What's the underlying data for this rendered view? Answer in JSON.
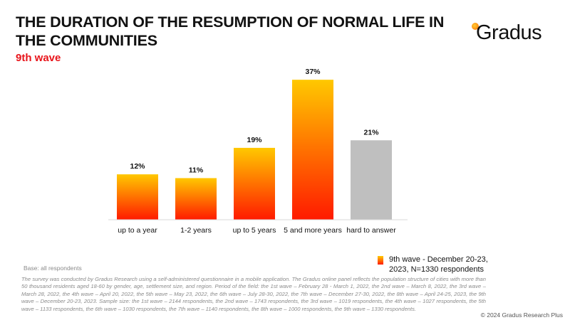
{
  "header": {
    "title": "THE DURATION OF THE RESUMPTION OF NORMAL LIFE IN THE COMMUNITIES",
    "subtitle": "9th wave"
  },
  "brand": {
    "logo_text": "Gradus",
    "accent_color": "#e8151b",
    "logo_dot_colors": [
      "#ffcc33",
      "#ff6a00"
    ]
  },
  "chart_data": {
    "type": "bar",
    "categories": [
      "up to a year",
      "1-2 years",
      "up to 5 years",
      "5 and more years",
      "hard to answer"
    ],
    "values": [
      12,
      11,
      19,
      37,
      21
    ],
    "value_labels": [
      "12%",
      "11%",
      "19%",
      "37%",
      "21%"
    ],
    "unit": "%",
    "ylim": [
      0,
      40
    ],
    "grid": false,
    "legend_position": "bottom-right",
    "bar_colors": {
      "gradient_top": "#ffc800",
      "gradient_bottom": "#ff1a00",
      "hard_to_answer": "#bfbfbf"
    },
    "series": [
      {
        "name": "9th wave - December 20-23, 2023, N=1330 respondents",
        "values": [
          12,
          11,
          19,
          37,
          21
        ]
      }
    ]
  },
  "legend": {
    "label": "9th wave - December 20-23, 2023, N=1330 respondents"
  },
  "footer": {
    "base": "Base: all respondents",
    "methodology": "The survey was conducted by Gradus Research using a self-administered questionnaire in a mobile application. The Gradus online panel reflects the population structure of cities with more than 50 thousand residents aged 18-60 by gender, age, settlement size, and region. Period of the field: the 1st wave – February 28 - March 1, 2022, the 2nd wave – March 8, 2022, the 3rd wave – March 28, 2022, the 4th wave – April 20, 2022, the 5th wave – May 23, 2022, the 6th wave – July 28-30, 2022, the 7th wave – December 27-30, 2022, the 8th wave – April 24-25, 2023, the 9th wave – December 20-23, 2023. Sample size: the 1st wave – 2144 respondents, the 2nd wave – 1743 respondents, the 3rd wave – 1019 respondents, the 4th wave – 1027 respondents, the 5th wave – 1133 respondents, the 6th wave – 1030 respondents, the 7th wave – 1140 respondents, the 8th wave – 1000 respondents, the 9th wave – 1330 respondents.",
    "copyright": "© 2024 Gradus Research Plus"
  }
}
